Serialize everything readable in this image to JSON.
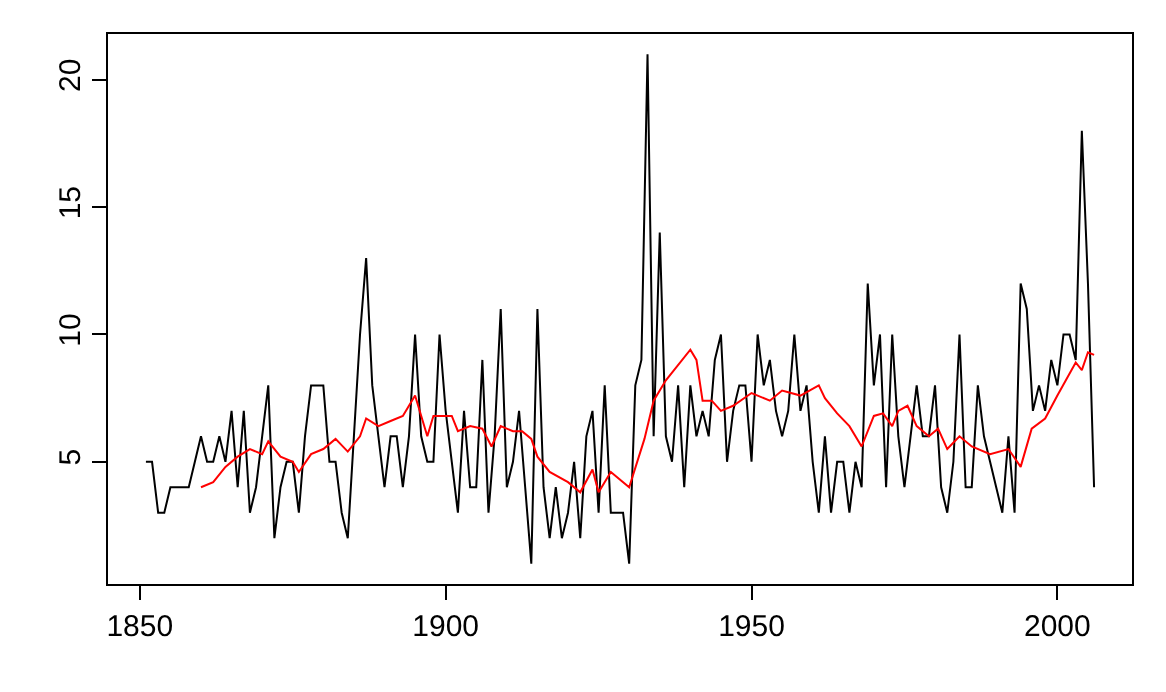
{
  "chart_data": {
    "type": "line",
    "xlim": [
      1844.8,
      2012.2
    ],
    "ylim": [
      0.2,
      21.8
    ],
    "xticks": [
      1850,
      1900,
      1950,
      2000
    ],
    "yticks": [
      5,
      10,
      15,
      20
    ],
    "marker": "none",
    "line_style": "solid",
    "series": [
      {
        "color": "#000000",
        "x": [
          1851,
          1852,
          1853,
          1854,
          1855,
          1856,
          1857,
          1858,
          1859,
          1860,
          1861,
          1862,
          1863,
          1864,
          1865,
          1866,
          1867,
          1868,
          1869,
          1870,
          1871,
          1872,
          1873,
          1874,
          1875,
          1876,
          1877,
          1878,
          1879,
          1880,
          1881,
          1882,
          1883,
          1884,
          1885,
          1886,
          1887,
          1888,
          1889,
          1890,
          1891,
          1892,
          1893,
          1894,
          1895,
          1896,
          1897,
          1898,
          1899,
          1900,
          1901,
          1902,
          1903,
          1904,
          1905,
          1906,
          1907,
          1908,
          1909,
          1910,
          1911,
          1912,
          1913,
          1914,
          1915,
          1916,
          1917,
          1918,
          1919,
          1920,
          1921,
          1922,
          1923,
          1924,
          1925,
          1926,
          1927,
          1928,
          1929,
          1930,
          1931,
          1932,
          1933,
          1934,
          1935,
          1936,
          1937,
          1938,
          1939,
          1940,
          1941,
          1942,
          1943,
          1944,
          1945,
          1946,
          1947,
          1948,
          1949,
          1950,
          1951,
          1952,
          1953,
          1954,
          1955,
          1956,
          1957,
          1958,
          1959,
          1960,
          1961,
          1962,
          1963,
          1964,
          1965,
          1966,
          1967,
          1968,
          1969,
          1970,
          1971,
          1972,
          1973,
          1974,
          1975,
          1976,
          1977,
          1978,
          1979,
          1980,
          1981,
          1982,
          1983,
          1984,
          1985,
          1986,
          1987,
          1988,
          1989,
          1990,
          1991,
          1992,
          1993,
          1994,
          1995,
          1996,
          1997,
          1998,
          1999,
          2000,
          2001,
          2002,
          2003,
          2004,
          2005,
          2006
        ],
        "values": [
          5,
          5,
          3,
          3,
          4,
          4,
          4,
          4,
          5,
          6,
          5,
          5,
          6,
          5,
          7,
          4,
          7,
          3,
          4,
          6,
          8,
          2,
          4,
          5,
          5,
          3,
          6,
          8,
          8,
          8,
          5,
          5,
          3,
          2,
          6,
          10,
          13,
          8,
          6,
          4,
          6,
          6,
          4,
          6,
          10,
          6,
          5,
          5,
          10,
          7,
          5,
          3,
          7,
          4,
          4,
          9,
          3,
          6,
          11,
          4,
          5,
          7,
          4,
          1,
          11,
          4,
          2,
          4,
          2,
          3,
          5,
          2,
          6,
          7,
          3,
          8,
          3,
          3,
          3,
          1,
          8,
          9,
          21,
          6,
          14,
          6,
          5,
          8,
          4,
          8,
          6,
          7,
          6,
          9,
          10,
          5,
          7,
          8,
          8,
          5,
          10,
          8,
          9,
          7,
          6,
          7,
          10,
          7,
          8,
          5,
          3,
          6,
          3,
          5,
          5,
          3,
          5,
          4,
          12,
          8,
          10,
          4,
          10,
          6,
          4,
          6,
          8,
          6,
          6,
          8,
          4,
          3,
          5,
          10,
          4,
          4,
          8,
          6,
          5,
          4,
          3,
          6,
          3,
          12,
          11,
          7,
          8,
          7,
          9,
          8,
          10,
          10,
          9,
          18,
          12,
          4
        ]
      },
      {
        "color": "#ff0000",
        "x": [
          1860,
          1862,
          1864,
          1866,
          1868,
          1870,
          1871,
          1873,
          1875,
          1876,
          1878,
          1880,
          1882,
          1884,
          1886,
          1887,
          1889,
          1891,
          1893,
          1895,
          1897,
          1898,
          1901,
          1902,
          1904,
          1906,
          1907.5,
          1909,
          1911,
          1912.5,
          1914,
          1915,
          1917,
          1920,
          1922,
          1924,
          1925,
          1927,
          1930,
          1932.5,
          1934,
          1936,
          1940,
          1941,
          1942,
          1943.5,
          1945,
          1947,
          1950,
          1953,
          1955,
          1958,
          1961,
          1962,
          1964,
          1966,
          1968,
          1970,
          1971.5,
          1973,
          1974,
          1975.5,
          1977,
          1979,
          1980.5,
          1982,
          1984,
          1986,
          1989,
          1992,
          1994,
          1995.8,
          1998,
          2000,
          2003,
          2004,
          2005,
          2006
        ],
        "values": [
          4.0,
          4.2,
          4.8,
          5.2,
          5.5,
          5.3,
          5.8,
          5.2,
          5.0,
          4.6,
          5.3,
          5.5,
          5.9,
          5.4,
          6.0,
          6.7,
          6.4,
          6.6,
          6.8,
          7.6,
          6.0,
          6.8,
          6.8,
          6.2,
          6.4,
          6.3,
          5.6,
          6.4,
          6.2,
          6.2,
          5.9,
          5.2,
          4.6,
          4.2,
          3.8,
          4.7,
          3.8,
          4.6,
          4.0,
          5.9,
          7.4,
          8.2,
          9.4,
          9.0,
          7.4,
          7.4,
          7.0,
          7.2,
          7.7,
          7.4,
          7.8,
          7.6,
          8.0,
          7.5,
          6.9,
          6.4,
          5.6,
          6.8,
          6.9,
          6.4,
          7.0,
          7.2,
          6.4,
          6.0,
          6.3,
          5.5,
          6.0,
          5.6,
          5.3,
          5.5,
          4.8,
          6.3,
          6.7,
          7.6,
          8.9,
          8.6,
          9.3,
          9.2
        ]
      }
    ]
  }
}
